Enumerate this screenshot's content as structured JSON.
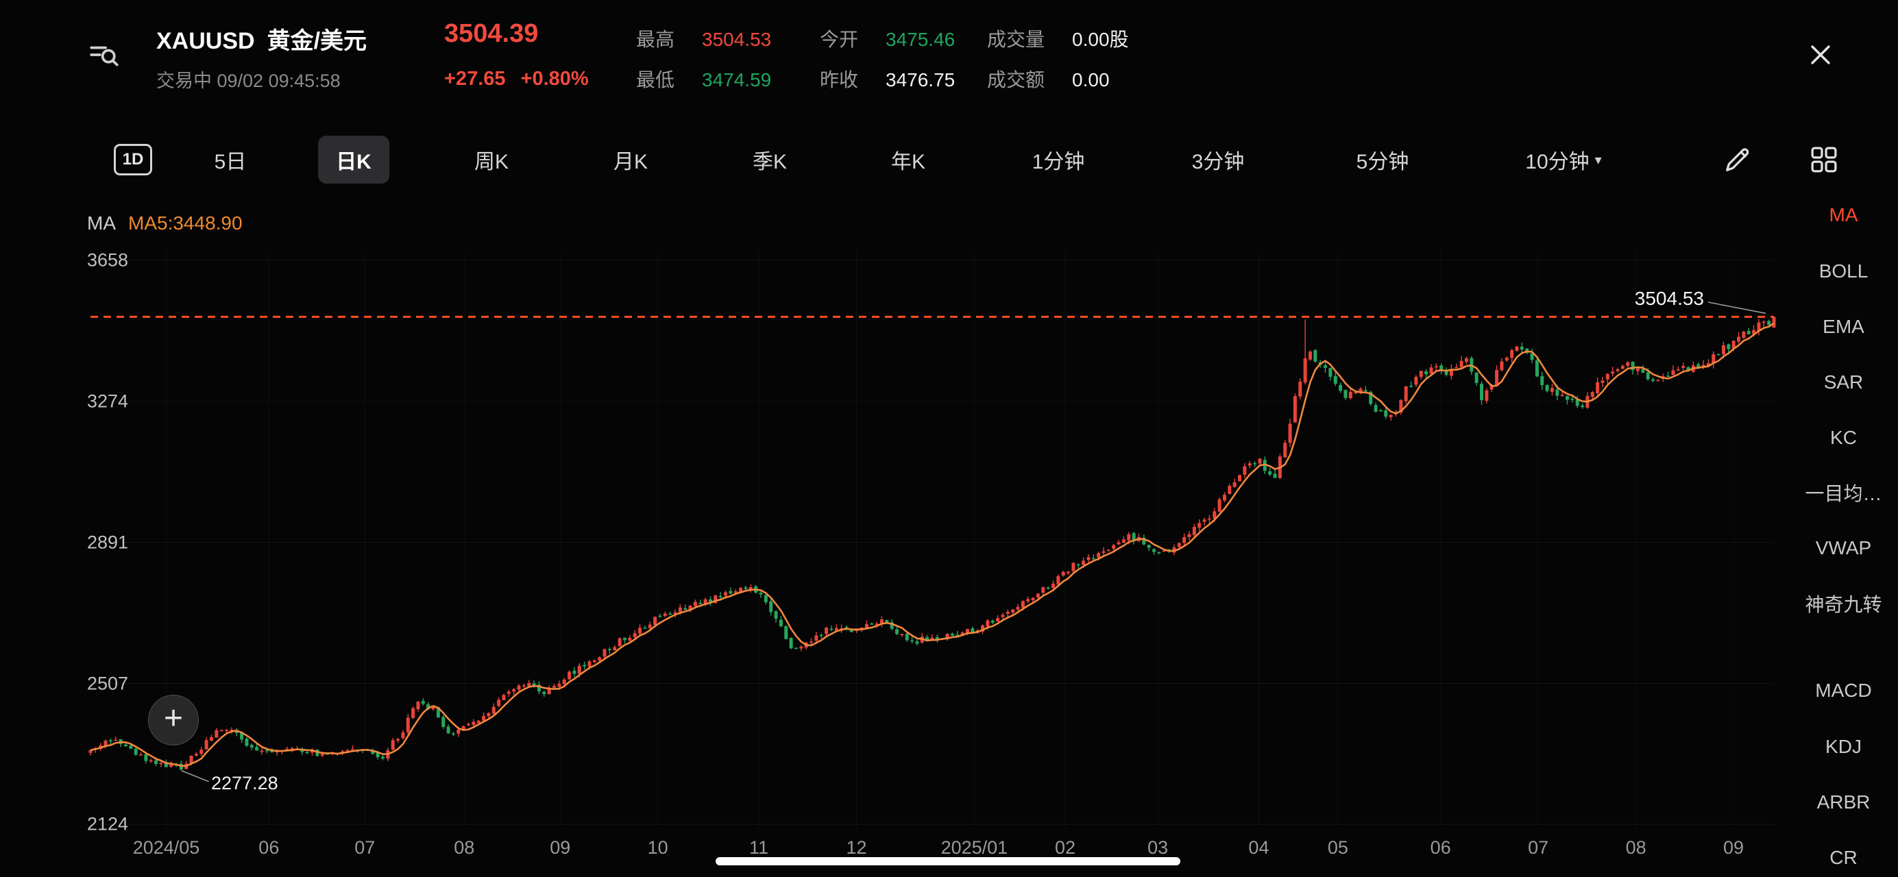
{
  "header": {
    "symbol": "XAUUSD",
    "name": "黄金/美元",
    "price": "3504.39",
    "change": "+27.65",
    "change_pct": "+0.80%",
    "status": "交易中 09/02 09:45:58",
    "stats": [
      {
        "label": "最高",
        "value": "3504.53",
        "color": "red"
      },
      {
        "label": "最低",
        "value": "3474.59",
        "color": "green"
      },
      {
        "label": "今开",
        "value": "3475.46",
        "color": "green"
      },
      {
        "label": "昨收",
        "value": "3476.75",
        "color": "white"
      },
      {
        "label": "成交量",
        "value": "0.00股",
        "color": "white"
      },
      {
        "label": "成交额",
        "value": "0.00",
        "color": "white"
      }
    ]
  },
  "toolbar": {
    "periods": [
      "1D",
      "5日",
      "日K",
      "周K",
      "月K",
      "季K",
      "年K",
      "1分钟",
      "3分钟",
      "5分钟",
      "10分钟"
    ],
    "selected": "日K"
  },
  "chart": {
    "ma_label": "MA",
    "ma5_value": "MA5:3448.90",
    "current_price_label": "3504.53",
    "low_label": "2277.28",
    "plus_glyph": "+"
  },
  "indicators": {
    "selected": "MA",
    "main": [
      "MA",
      "BOLL",
      "EMA",
      "SAR",
      "KC",
      "一目均…",
      "VWAP",
      "神奇九转"
    ],
    "sub": [
      "MACD",
      "KDJ",
      "ARBR",
      "CR"
    ]
  },
  "chart_data": {
    "type": "candlestick",
    "symbol": "XAUUSD",
    "interval": "日K",
    "y_axis": [
      3658,
      3274,
      2891,
      2507,
      2124
    ],
    "x_ticks": [
      {
        "label": "2024/05",
        "f": 0.045
      },
      {
        "label": "06",
        "f": 0.106
      },
      {
        "label": "07",
        "f": 0.163
      },
      {
        "label": "08",
        "f": 0.222
      },
      {
        "label": "09",
        "f": 0.279
      },
      {
        "label": "10",
        "f": 0.337
      },
      {
        "label": "11",
        "f": 0.397
      },
      {
        "label": "12",
        "f": 0.455
      },
      {
        "label": "2025/01",
        "f": 0.525
      },
      {
        "label": "02",
        "f": 0.579
      },
      {
        "label": "03",
        "f": 0.634
      },
      {
        "label": "04",
        "f": 0.694
      },
      {
        "label": "05",
        "f": 0.741
      },
      {
        "label": "06",
        "f": 0.802
      },
      {
        "label": "07",
        "f": 0.86
      },
      {
        "label": "08",
        "f": 0.918
      },
      {
        "label": "09",
        "f": 0.976
      }
    ],
    "current_price": 3504.39,
    "session_high": 3504.53,
    "session_low": 3474.59,
    "open": 3475.46,
    "prev_close": 3476.75,
    "period_low": 2277.28,
    "low_frac": 0.054,
    "spike_frac": 0.723,
    "spike_high": 3497,
    "ma5": 3448.9,
    "num_candles": 335,
    "seed": 9,
    "colors": {
      "up": "#e8443a",
      "down": "#26a65d",
      "ma": "#f0883e",
      "dash": "#ff4f1f"
    },
    "anchors": [
      [
        0.0,
        2320
      ],
      [
        0.014,
        2358
      ],
      [
        0.032,
        2300
      ],
      [
        0.054,
        2278
      ],
      [
        0.079,
        2392
      ],
      [
        0.101,
        2316
      ],
      [
        0.122,
        2330
      ],
      [
        0.14,
        2310
      ],
      [
        0.158,
        2326
      ],
      [
        0.173,
        2306
      ],
      [
        0.187,
        2390
      ],
      [
        0.194,
        2458
      ],
      [
        0.205,
        2432
      ],
      [
        0.212,
        2366
      ],
      [
        0.23,
        2402
      ],
      [
        0.248,
        2488
      ],
      [
        0.263,
        2510
      ],
      [
        0.27,
        2476
      ],
      [
        0.281,
        2522
      ],
      [
        0.299,
        2570
      ],
      [
        0.313,
        2618
      ],
      [
        0.327,
        2660
      ],
      [
        0.335,
        2680
      ],
      [
        0.349,
        2704
      ],
      [
        0.363,
        2726
      ],
      [
        0.378,
        2752
      ],
      [
        0.392,
        2776
      ],
      [
        0.406,
        2700
      ],
      [
        0.417,
        2590
      ],
      [
        0.428,
        2630
      ],
      [
        0.442,
        2660
      ],
      [
        0.457,
        2654
      ],
      [
        0.471,
        2680
      ],
      [
        0.486,
        2622
      ],
      [
        0.5,
        2628
      ],
      [
        0.514,
        2640
      ],
      [
        0.529,
        2660
      ],
      [
        0.543,
        2704
      ],
      [
        0.558,
        2736
      ],
      [
        0.572,
        2786
      ],
      [
        0.586,
        2834
      ],
      [
        0.601,
        2868
      ],
      [
        0.615,
        2910
      ],
      [
        0.626,
        2890
      ],
      [
        0.633,
        2858
      ],
      [
        0.644,
        2870
      ],
      [
        0.655,
        2934
      ],
      [
        0.665,
        2966
      ],
      [
        0.676,
        3032
      ],
      [
        0.687,
        3098
      ],
      [
        0.693,
        3122
      ],
      [
        0.703,
        3050
      ],
      [
        0.712,
        3214
      ],
      [
        0.723,
        3410
      ],
      [
        0.73,
        3378
      ],
      [
        0.737,
        3344
      ],
      [
        0.746,
        3280
      ],
      [
        0.755,
        3322
      ],
      [
        0.762,
        3246
      ],
      [
        0.773,
        3230
      ],
      [
        0.781,
        3312
      ],
      [
        0.799,
        3378
      ],
      [
        0.806,
        3340
      ],
      [
        0.817,
        3394
      ],
      [
        0.827,
        3280
      ],
      [
        0.842,
        3410
      ],
      [
        0.851,
        3428
      ],
      [
        0.863,
        3312
      ],
      [
        0.877,
        3280
      ],
      [
        0.885,
        3262
      ],
      [
        0.899,
        3340
      ],
      [
        0.913,
        3378
      ],
      [
        0.924,
        3340
      ],
      [
        0.935,
        3344
      ],
      [
        0.946,
        3360
      ],
      [
        0.964,
        3394
      ],
      [
        0.978,
        3444
      ],
      [
        1.0,
        3500
      ]
    ]
  }
}
